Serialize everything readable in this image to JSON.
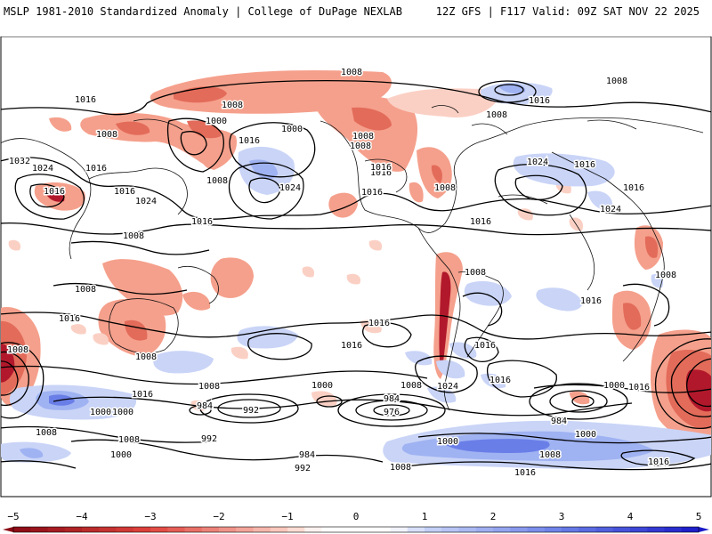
{
  "header": {
    "left": "MSLP 1981-2010 Standardized Anomaly | College of DuPage NEXLAB",
    "right": "12Z GFS | F117 Valid: 09Z SAT NOV 22 2025"
  },
  "colors": {
    "neg_strong": "#b2182b",
    "neg_mid": "#e36b5a",
    "neg_light": "#f5a08c",
    "neg_faint": "#fbd0c4",
    "pos_faint": "#c9d4f7",
    "pos_light": "#9fb2f2",
    "pos_mid": "#6a7ee8",
    "pos_strong": "#3a3fd4",
    "contour": "#000000",
    "land_outline": "#111111"
  },
  "isobar_labels": [
    {
      "text": "1008"
    },
    {
      "text": "1008"
    },
    {
      "text": "1016"
    },
    {
      "text": "1008"
    },
    {
      "text": "1000"
    },
    {
      "text": "1008"
    },
    {
      "text": "1000"
    },
    {
      "text": "1016"
    },
    {
      "text": "1008"
    },
    {
      "text": "1016"
    },
    {
      "text": "1008"
    },
    {
      "text": "1008"
    },
    {
      "text": "1016"
    },
    {
      "text": "1032"
    },
    {
      "text": "1024"
    },
    {
      "text": "1016"
    },
    {
      "text": "1008"
    },
    {
      "text": "1024"
    },
    {
      "text": "1016"
    },
    {
      "text": "1016"
    },
    {
      "text": "1016"
    },
    {
      "text": "1024"
    },
    {
      "text": "1008"
    },
    {
      "text": "1016"
    },
    {
      "text": "1024"
    },
    {
      "text": "1016"
    },
    {
      "text": "1024"
    },
    {
      "text": "1016"
    },
    {
      "text": "1016"
    },
    {
      "text": "1016"
    },
    {
      "text": "1008"
    },
    {
      "text": "1008"
    },
    {
      "text": "1008"
    },
    {
      "text": "1016"
    },
    {
      "text": "1008"
    },
    {
      "text": "1016"
    },
    {
      "text": "1016"
    },
    {
      "text": "1008"
    },
    {
      "text": "1016"
    },
    {
      "text": "1016"
    },
    {
      "text": "1016"
    },
    {
      "text": "1008"
    },
    {
      "text": "1016"
    },
    {
      "text": "1008"
    },
    {
      "text": "1000"
    },
    {
      "text": "1024"
    },
    {
      "text": "1016"
    },
    {
      "text": "1008"
    },
    {
      "text": "1000"
    },
    {
      "text": "984"
    },
    {
      "text": "992"
    },
    {
      "text": "984"
    },
    {
      "text": "976"
    },
    {
      "text": "992"
    },
    {
      "text": "984"
    },
    {
      "text": "992"
    },
    {
      "text": "1000"
    },
    {
      "text": "1000"
    },
    {
      "text": "1008"
    },
    {
      "text": "1000"
    },
    {
      "text": "984"
    },
    {
      "text": "1000"
    },
    {
      "text": "1008"
    },
    {
      "text": "1016"
    },
    {
      "text": "1008"
    },
    {
      "text": "1016"
    },
    {
      "text": "1008"
    },
    {
      "text": "1000"
    }
  ],
  "colorbar": {
    "min": -5,
    "max": 5,
    "ticks": [
      "−5",
      "−4",
      "−3",
      "−2",
      "−1",
      "0",
      "1",
      "2",
      "3",
      "4",
      "5"
    ]
  }
}
